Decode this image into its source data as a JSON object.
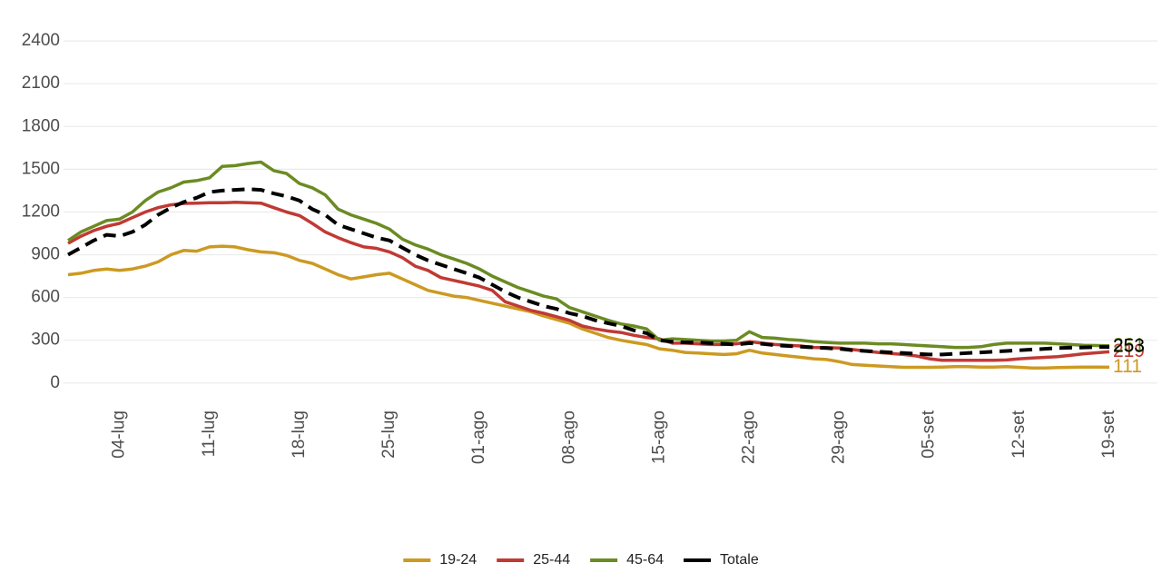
{
  "chart_data": {
    "type": "line",
    "categories": [
      null,
      null,
      null,
      null,
      "04-lug",
      null,
      null,
      null,
      null,
      null,
      null,
      "11-lug",
      null,
      null,
      null,
      null,
      null,
      null,
      "18-lug",
      null,
      null,
      null,
      null,
      null,
      null,
      "25-lug",
      null,
      null,
      null,
      null,
      null,
      null,
      "01-ago",
      null,
      null,
      null,
      null,
      null,
      null,
      "08-ago",
      null,
      null,
      null,
      null,
      null,
      null,
      "15-ago",
      null,
      null,
      null,
      null,
      null,
      null,
      "22-ago",
      null,
      null,
      null,
      null,
      null,
      null,
      "29-ago",
      null,
      null,
      null,
      null,
      null,
      null,
      "05-set",
      null,
      null,
      null,
      null,
      null,
      null,
      "12-set",
      null,
      null,
      null,
      null,
      null,
      null,
      "19-set"
    ],
    "series": [
      {
        "name": "19-24",
        "color": "#cc9a22",
        "values": [
          760,
          770,
          790,
          800,
          790,
          800,
          820,
          850,
          900,
          930,
          925,
          955,
          960,
          955,
          935,
          920,
          915,
          895,
          860,
          840,
          800,
          760,
          730,
          745,
          760,
          770,
          730,
          690,
          650,
          630,
          610,
          600,
          580,
          560,
          540,
          520,
          500,
          470,
          445,
          420,
          380,
          350,
          320,
          300,
          285,
          270,
          240,
          230,
          215,
          210,
          205,
          200,
          205,
          230,
          210,
          200,
          190,
          180,
          170,
          165,
          150,
          130,
          125,
          120,
          115,
          110,
          110,
          110,
          112,
          115,
          115,
          112,
          112,
          115,
          110,
          105,
          105,
          108,
          110,
          112,
          112,
          111
        ]
      },
      {
        "name": "25-44",
        "color": "#c03a34",
        "values": [
          980,
          1030,
          1070,
          1100,
          1120,
          1160,
          1200,
          1230,
          1250,
          1260,
          1262,
          1265,
          1265,
          1268,
          1265,
          1262,
          1230,
          1200,
          1175,
          1120,
          1060,
          1020,
          985,
          955,
          945,
          920,
          880,
          820,
          790,
          740,
          720,
          700,
          680,
          650,
          570,
          540,
          510,
          490,
          465,
          440,
          400,
          380,
          365,
          355,
          335,
          320,
          310,
          280,
          280,
          275,
          270,
          270,
          275,
          290,
          280,
          270,
          265,
          260,
          250,
          248,
          245,
          235,
          225,
          215,
          208,
          200,
          190,
          170,
          160,
          160,
          160,
          160,
          160,
          162,
          170,
          175,
          180,
          185,
          195,
          205,
          212,
          219
        ]
      },
      {
        "name": "45-64",
        "color": "#6b8b23",
        "values": [
          1000,
          1060,
          1100,
          1140,
          1150,
          1200,
          1280,
          1340,
          1370,
          1410,
          1420,
          1440,
          1520,
          1525,
          1540,
          1550,
          1490,
          1470,
          1400,
          1370,
          1320,
          1220,
          1180,
          1150,
          1120,
          1080,
          1010,
          970,
          940,
          900,
          870,
          840,
          800,
          750,
          710,
          670,
          640,
          610,
          590,
          530,
          500,
          470,
          440,
          415,
          400,
          380,
          300,
          310,
          305,
          300,
          295,
          295,
          300,
          360,
          320,
          315,
          305,
          300,
          290,
          285,
          280,
          280,
          280,
          275,
          275,
          270,
          265,
          260,
          255,
          250,
          250,
          255,
          270,
          280,
          280,
          280,
          280,
          275,
          270,
          265,
          263,
          261
        ]
      },
      {
        "name": "Totale",
        "color": "#000000",
        "dashed": true,
        "values": [
          900,
          950,
          1000,
          1040,
          1030,
          1060,
          1110,
          1180,
          1230,
          1270,
          1300,
          1340,
          1350,
          1355,
          1360,
          1355,
          1330,
          1310,
          1280,
          1220,
          1180,
          1110,
          1080,
          1050,
          1020,
          1000,
          950,
          900,
          860,
          830,
          800,
          770,
          740,
          690,
          640,
          600,
          570,
          540,
          520,
          490,
          470,
          440,
          420,
          400,
          370,
          350,
          300,
          290,
          285,
          285,
          280,
          275,
          270,
          280,
          275,
          265,
          260,
          255,
          250,
          245,
          240,
          230,
          225,
          220,
          215,
          210,
          205,
          200,
          200,
          205,
          210,
          215,
          220,
          225,
          230,
          235,
          240,
          245,
          248,
          250,
          252,
          253
        ]
      }
    ],
    "ylim": [
      -65,
      2560
    ],
    "yticks": [
      0,
      300,
      600,
      900,
      1200,
      1500,
      1800,
      2100,
      2400
    ],
    "grid": true,
    "legend": "bottom"
  }
}
